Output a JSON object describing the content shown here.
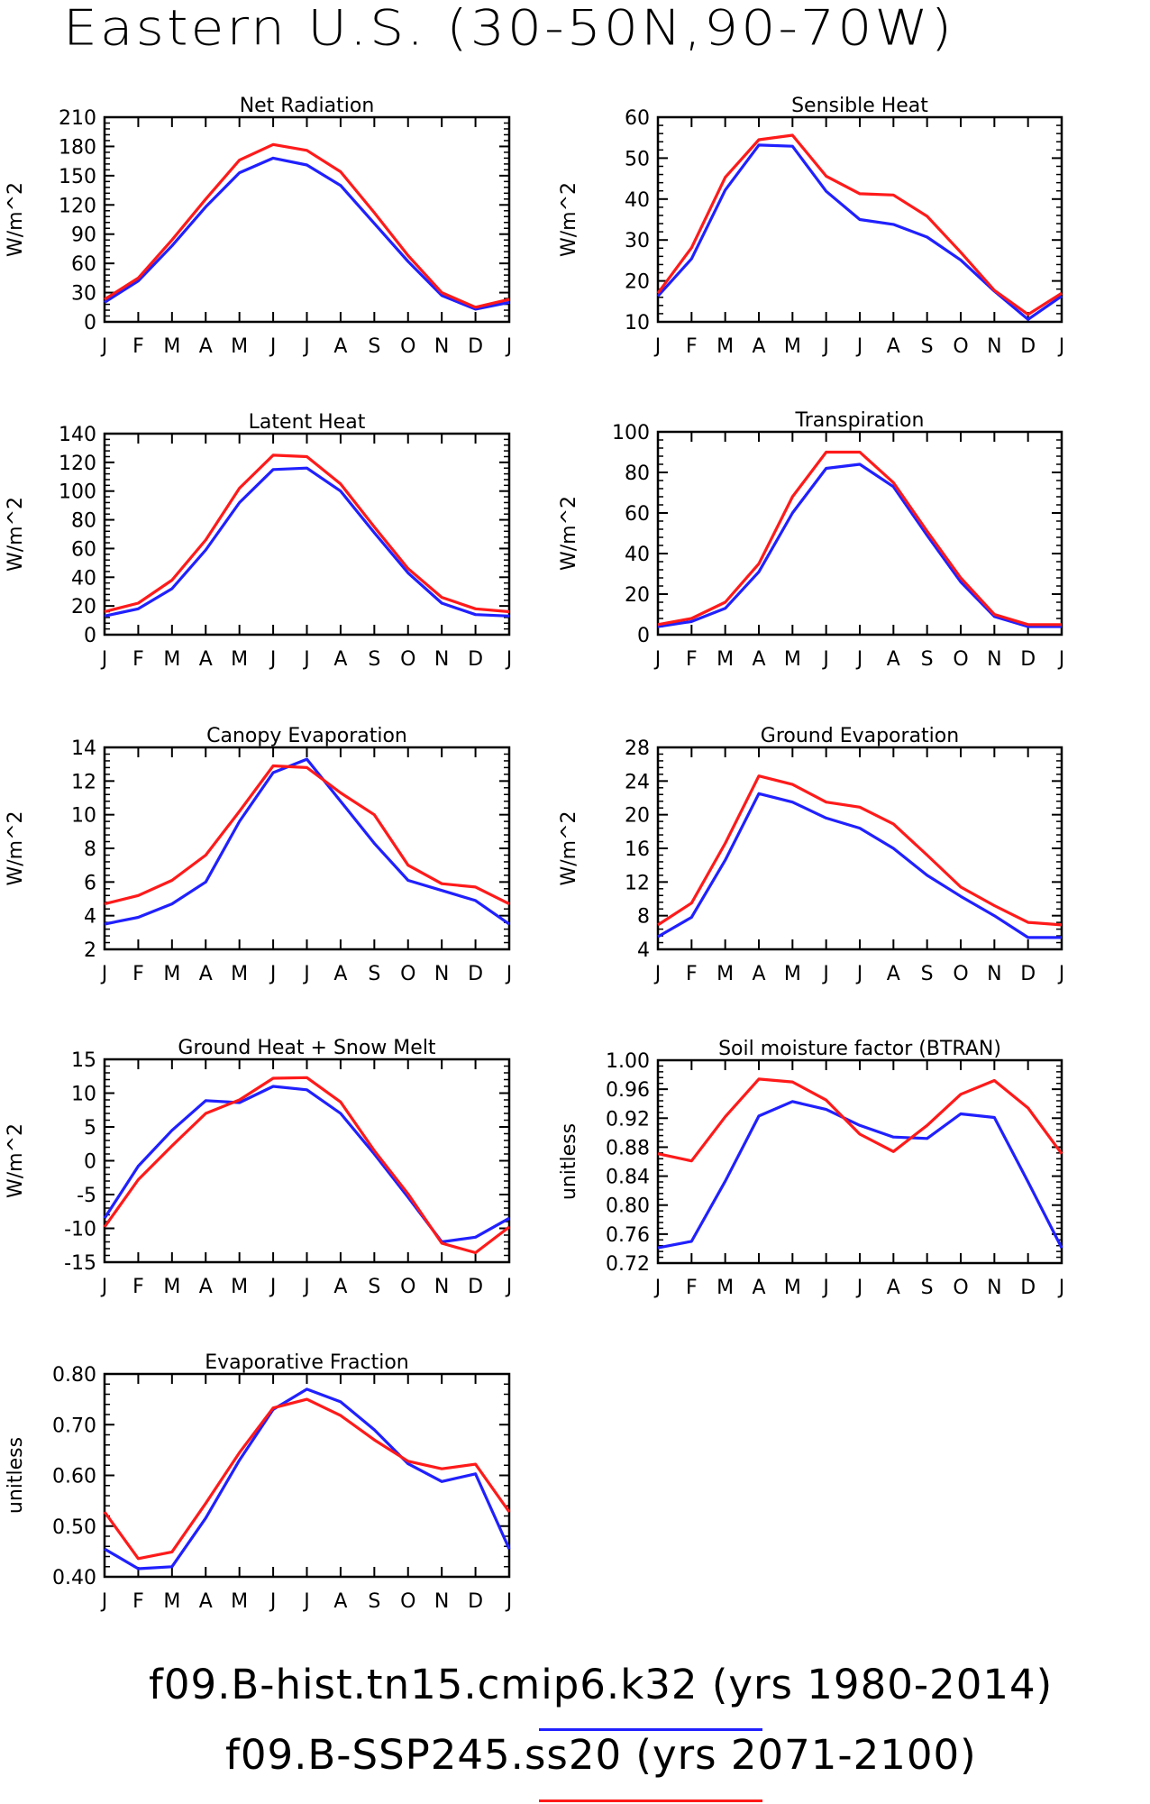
{
  "title": "Eastern U.S. (30-50N,90-70W)",
  "legend": [
    {
      "label": "f09.B-hist.tn15.cmip6.k32 (yrs 1980-2014)",
      "color": "#2020ff"
    },
    {
      "label": "f09.B-SSP245.ss20 (yrs 2071-2100)",
      "color": "#ff1a1a"
    }
  ],
  "chart_data": [
    {
      "type": "line",
      "title": "Net Radiation",
      "ylabel": "W/m^2",
      "categories": [
        "J",
        "F",
        "M",
        "A",
        "M",
        "J",
        "J",
        "A",
        "S",
        "O",
        "N",
        "D",
        "J"
      ],
      "ylim": [
        0,
        210
      ],
      "yticks": [
        0,
        30,
        60,
        90,
        120,
        150,
        180,
        210
      ],
      "ytick_labels": [
        "0",
        "30",
        "60",
        "90",
        "120",
        "150",
        "180",
        "210"
      ],
      "series": [
        {
          "color": "#2020ff",
          "values": [
            20,
            42,
            78,
            118,
            153,
            168,
            161,
            140,
            101,
            62,
            27,
            13,
            20
          ]
        },
        {
          "color": "#ff1a1a",
          "values": [
            23,
            45,
            84,
            126,
            166,
            182,
            176,
            154,
            112,
            68,
            30,
            15,
            23
          ]
        }
      ]
    },
    {
      "type": "line",
      "title": "Sensible Heat",
      "ylabel": "W/m^2",
      "categories": [
        "J",
        "F",
        "M",
        "A",
        "M",
        "J",
        "J",
        "A",
        "S",
        "O",
        "N",
        "D",
        "J"
      ],
      "ylim": [
        10,
        60
      ],
      "yticks": [
        10,
        20,
        30,
        40,
        50,
        60
      ],
      "ytick_labels": [
        "10",
        "20",
        "30",
        "40",
        "50",
        "60"
      ],
      "series": [
        {
          "color": "#2020ff",
          "values": [
            16.3,
            25.4,
            42.2,
            53.2,
            52.9,
            41.9,
            35.0,
            33.8,
            30.7,
            25.1,
            17.5,
            10.6,
            16.3
          ]
        },
        {
          "color": "#ff1a1a",
          "values": [
            17.0,
            28.1,
            45.3,
            54.5,
            55.6,
            45.6,
            41.3,
            41.0,
            35.8,
            27.0,
            17.7,
            11.8,
            17.0
          ]
        }
      ]
    },
    {
      "type": "line",
      "title": "Latent Heat",
      "ylabel": "W/m^2",
      "categories": [
        "J",
        "F",
        "M",
        "A",
        "M",
        "J",
        "J",
        "A",
        "S",
        "O",
        "N",
        "D",
        "J"
      ],
      "ylim": [
        0,
        140
      ],
      "yticks": [
        0,
        20,
        40,
        60,
        80,
        100,
        120,
        140
      ],
      "ytick_labels": [
        "0",
        "20",
        "40",
        "60",
        "80",
        "100",
        "120",
        "140"
      ],
      "series": [
        {
          "color": "#2020ff",
          "values": [
            13,
            18,
            32,
            59,
            92,
            115,
            116,
            100,
            71,
            43,
            22,
            14,
            13
          ]
        },
        {
          "color": "#ff1a1a",
          "values": [
            16,
            22,
            38,
            66,
            102,
            125,
            124,
            105,
            75,
            46,
            26,
            18,
            16
          ]
        }
      ]
    },
    {
      "type": "line",
      "title": "Transpiration",
      "ylabel": "W/m^2",
      "categories": [
        "J",
        "F",
        "M",
        "A",
        "M",
        "J",
        "J",
        "A",
        "S",
        "O",
        "N",
        "D",
        "J"
      ],
      "ylim": [
        0,
        100
      ],
      "yticks": [
        0,
        20,
        40,
        60,
        80,
        100
      ],
      "ytick_labels": [
        "0",
        "20",
        "40",
        "60",
        "80",
        "100"
      ],
      "series": [
        {
          "color": "#2020ff",
          "values": [
            4,
            6.5,
            13,
            31,
            60,
            82,
            84,
            73,
            49,
            26,
            9,
            4,
            4
          ]
        },
        {
          "color": "#ff1a1a",
          "values": [
            5,
            8,
            16,
            35,
            68,
            90,
            90,
            75,
            51,
            28,
            10,
            5,
            5
          ]
        }
      ]
    },
    {
      "type": "line",
      "title": "Canopy Evaporation",
      "ylabel": "W/m^2",
      "categories": [
        "J",
        "F",
        "M",
        "A",
        "M",
        "J",
        "J",
        "A",
        "S",
        "O",
        "N",
        "D",
        "J"
      ],
      "ylim": [
        2,
        14
      ],
      "yticks": [
        2,
        4,
        6,
        8,
        10,
        12,
        14
      ],
      "ytick_labels": [
        "2",
        "4",
        "6",
        "8",
        "10",
        "12",
        "14"
      ],
      "series": [
        {
          "color": "#2020ff",
          "values": [
            3.5,
            3.9,
            4.7,
            6.0,
            9.6,
            12.5,
            13.3,
            10.8,
            8.3,
            6.1,
            5.5,
            4.9,
            3.5
          ]
        },
        {
          "color": "#ff1a1a",
          "values": [
            4.7,
            5.2,
            6.1,
            7.6,
            10.2,
            12.9,
            12.8,
            11.3,
            10.0,
            7.0,
            5.9,
            5.7,
            4.7
          ]
        }
      ]
    },
    {
      "type": "line",
      "title": "Ground Evaporation",
      "ylabel": "W/m^2",
      "categories": [
        "J",
        "F",
        "M",
        "A",
        "M",
        "J",
        "J",
        "A",
        "S",
        "O",
        "N",
        "D",
        "J"
      ],
      "ylim": [
        4,
        28
      ],
      "yticks": [
        4,
        8,
        12,
        16,
        20,
        24,
        28
      ],
      "ytick_labels": [
        "4",
        "8",
        "12",
        "16",
        "20",
        "24",
        "28"
      ],
      "series": [
        {
          "color": "#2020ff",
          "values": [
            5.5,
            7.8,
            14.6,
            22.5,
            21.5,
            19.6,
            18.4,
            16.0,
            12.8,
            10.3,
            8.0,
            5.4,
            5.4
          ]
        },
        {
          "color": "#ff1a1a",
          "values": [
            6.9,
            9.5,
            16.6,
            24.6,
            23.6,
            21.5,
            20.9,
            18.9,
            15.2,
            11.4,
            9.2,
            7.2,
            6.9
          ]
        }
      ]
    },
    {
      "type": "line",
      "title": "Ground Heat + Snow Melt",
      "ylabel": "W/m^2",
      "categories": [
        "J",
        "F",
        "M",
        "A",
        "M",
        "J",
        "J",
        "A",
        "S",
        "O",
        "N",
        "D",
        "J"
      ],
      "ylim": [
        -15,
        15
      ],
      "yticks": [
        -15,
        -10,
        -5,
        0,
        5,
        10,
        15
      ],
      "ytick_labels": [
        "-15",
        "-10",
        "-5",
        "0",
        "5",
        "10",
        "15"
      ],
      "series": [
        {
          "color": "#2020ff",
          "values": [
            -8.5,
            -0.8,
            4.5,
            8.9,
            8.6,
            11.0,
            10.5,
            7.0,
            1.0,
            -5.4,
            -12.0,
            -11.3,
            -8.5
          ]
        },
        {
          "color": "#ff1a1a",
          "values": [
            -9.8,
            -2.8,
            2.2,
            7.0,
            9.0,
            12.2,
            12.3,
            8.7,
            1.5,
            -4.9,
            -12.2,
            -13.6,
            -9.8
          ]
        }
      ]
    },
    {
      "type": "line",
      "title": "Soil moisture factor (BTRAN)",
      "ylabel": "unitless",
      "categories": [
        "J",
        "F",
        "M",
        "A",
        "M",
        "J",
        "J",
        "A",
        "S",
        "O",
        "N",
        "D",
        "J"
      ],
      "ylim": [
        0.72,
        1.0
      ],
      "yticks": [
        0.72,
        0.76,
        0.8,
        0.84,
        0.88,
        0.92,
        0.96,
        1.0
      ],
      "ytick_labels": [
        "0.72",
        "0.76",
        "0.80",
        "0.84",
        "0.88",
        "0.92",
        "0.96",
        "1.00"
      ],
      "series": [
        {
          "color": "#2020ff",
          "values": [
            0.741,
            0.75,
            0.833,
            0.923,
            0.943,
            0.932,
            0.91,
            0.894,
            0.892,
            0.926,
            0.921,
            0.832,
            0.741
          ]
        },
        {
          "color": "#ff1a1a",
          "values": [
            0.871,
            0.861,
            0.922,
            0.974,
            0.97,
            0.945,
            0.898,
            0.874,
            0.91,
            0.953,
            0.972,
            0.934,
            0.871
          ]
        }
      ]
    },
    {
      "type": "line",
      "title": "Evaporative Fraction",
      "ylabel": "unitless",
      "categories": [
        "J",
        "F",
        "M",
        "A",
        "M",
        "J",
        "J",
        "A",
        "S",
        "O",
        "N",
        "D",
        "J"
      ],
      "ylim": [
        0.4,
        0.8
      ],
      "yticks": [
        0.4,
        0.5,
        0.6,
        0.7,
        0.8
      ],
      "ytick_labels": [
        "0.40",
        "0.50",
        "0.60",
        "0.70",
        "0.80"
      ],
      "series": [
        {
          "color": "#2020ff",
          "values": [
            0.455,
            0.416,
            0.42,
            0.516,
            0.63,
            0.73,
            0.77,
            0.745,
            0.69,
            0.623,
            0.588,
            0.603,
            0.455
          ]
        },
        {
          "color": "#ff1a1a",
          "values": [
            0.528,
            0.436,
            0.449,
            0.545,
            0.645,
            0.733,
            0.75,
            0.718,
            0.67,
            0.628,
            0.613,
            0.622,
            0.528
          ]
        }
      ]
    }
  ]
}
